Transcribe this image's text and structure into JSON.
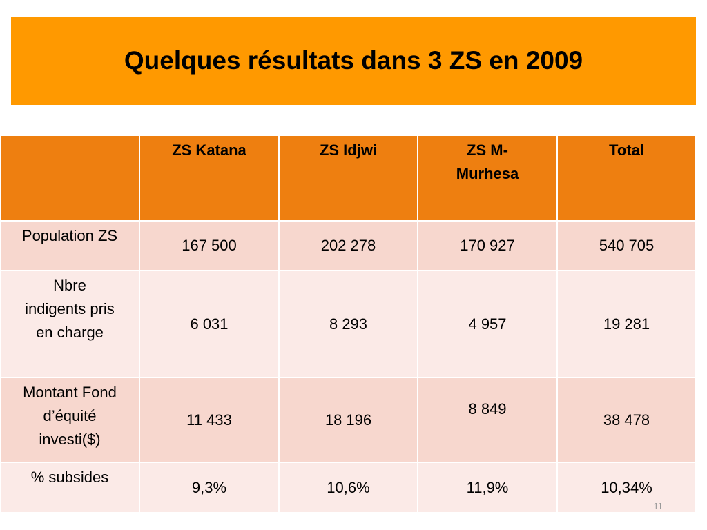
{
  "header": {
    "title": "Quelques résultats dans 3 ZS en 2009"
  },
  "table": {
    "columns": [
      "ZS Katana",
      "ZS Idjwi",
      "ZS M-\nMurhesa",
      "Total"
    ],
    "rows": [
      {
        "label": "Population ZS",
        "values": [
          "167 500",
          "202 278",
          "170 927",
          "540 705"
        ]
      },
      {
        "label": "Nbre\nindigents pris\nen charge",
        "values": [
          "6 031",
          "8 293",
          "4 957",
          "19 281"
        ]
      },
      {
        "label": "Montant Fond\nd’équité\ninvesti($)",
        "values": [
          "11 433",
          "18 196",
          "8 849",
          "38 478"
        ]
      },
      {
        "label": "% subsides",
        "values": [
          "9,3%",
          "10,6%",
          "11,9%",
          "10,34%"
        ]
      }
    ]
  },
  "footer": {
    "page_number": "11"
  }
}
